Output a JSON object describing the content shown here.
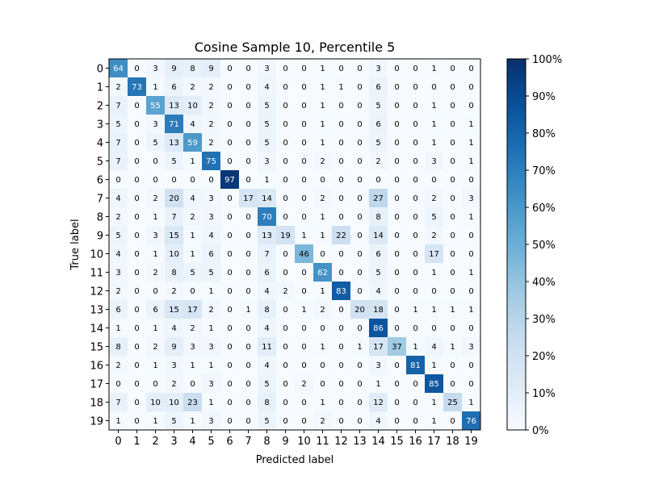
{
  "chart_data": {
    "type": "heatmap",
    "title": "Cosine Sample 10, Percentile 5",
    "xlabel": "Predicted label",
    "ylabel": "True label",
    "x_categories": [
      "0",
      "1",
      "2",
      "3",
      "4",
      "5",
      "6",
      "7",
      "8",
      "9",
      "10",
      "11",
      "12",
      "13",
      "14",
      "15",
      "16",
      "17",
      "18",
      "19"
    ],
    "y_categories": [
      "0",
      "1",
      "2",
      "3",
      "4",
      "5",
      "6",
      "7",
      "8",
      "9",
      "10",
      "11",
      "12",
      "13",
      "14",
      "15",
      "16",
      "17",
      "18",
      "19"
    ],
    "values": [
      [
        64,
        0,
        3,
        9,
        8,
        9,
        0,
        0,
        3,
        0,
        0,
        1,
        0,
        0,
        3,
        0,
        0,
        1,
        0,
        0
      ],
      [
        2,
        73,
        1,
        6,
        2,
        2,
        0,
        0,
        4,
        0,
        0,
        1,
        1,
        0,
        6,
        0,
        0,
        0,
        0,
        0
      ],
      [
        7,
        0,
        55,
        13,
        10,
        2,
        0,
        0,
        5,
        0,
        0,
        1,
        0,
        0,
        5,
        0,
        0,
        1,
        0,
        0
      ],
      [
        5,
        0,
        3,
        71,
        4,
        2,
        0,
        0,
        5,
        0,
        0,
        1,
        0,
        0,
        6,
        0,
        0,
        1,
        0,
        1
      ],
      [
        7,
        0,
        5,
        13,
        59,
        2,
        0,
        0,
        5,
        0,
        0,
        1,
        0,
        0,
        5,
        0,
        0,
        1,
        0,
        1
      ],
      [
        7,
        0,
        0,
        5,
        1,
        75,
        0,
        0,
        3,
        0,
        0,
        2,
        0,
        0,
        2,
        0,
        0,
        3,
        0,
        1
      ],
      [
        0,
        0,
        0,
        0,
        0,
        0,
        97,
        0,
        1,
        0,
        0,
        0,
        0,
        0,
        0,
        0,
        0,
        0,
        0,
        0
      ],
      [
        4,
        0,
        2,
        20,
        4,
        3,
        0,
        17,
        14,
        0,
        0,
        2,
        0,
        0,
        27,
        0,
        0,
        2,
        0,
        3
      ],
      [
        2,
        0,
        1,
        7,
        2,
        3,
        0,
        0,
        70,
        0,
        0,
        1,
        0,
        0,
        8,
        0,
        0,
        5,
        0,
        1
      ],
      [
        5,
        0,
        3,
        15,
        1,
        4,
        0,
        0,
        13,
        19,
        1,
        1,
        22,
        0,
        14,
        0,
        0,
        2,
        0,
        0
      ],
      [
        4,
        0,
        1,
        10,
        1,
        6,
        0,
        0,
        7,
        0,
        46,
        0,
        0,
        0,
        6,
        0,
        0,
        17,
        0,
        0
      ],
      [
        3,
        0,
        2,
        8,
        5,
        5,
        0,
        0,
        6,
        0,
        0,
        62,
        0,
        0,
        5,
        0,
        0,
        1,
        0,
        1
      ],
      [
        2,
        0,
        0,
        2,
        0,
        1,
        0,
        0,
        4,
        2,
        0,
        1,
        83,
        0,
        4,
        0,
        0,
        0,
        0,
        0
      ],
      [
        6,
        0,
        6,
        15,
        17,
        2,
        0,
        1,
        8,
        0,
        1,
        2,
        0,
        20,
        18,
        0,
        1,
        1,
        1,
        1
      ],
      [
        1,
        0,
        1,
        4,
        2,
        1,
        0,
        0,
        4,
        0,
        0,
        0,
        0,
        0,
        86,
        0,
        0,
        0,
        0,
        0
      ],
      [
        8,
        0,
        2,
        9,
        3,
        3,
        0,
        0,
        11,
        0,
        0,
        1,
        0,
        1,
        17,
        37,
        1,
        4,
        1,
        3
      ],
      [
        2,
        0,
        1,
        3,
        1,
        1,
        0,
        0,
        4,
        0,
        0,
        0,
        0,
        0,
        3,
        0,
        81,
        1,
        0,
        0
      ],
      [
        0,
        0,
        0,
        2,
        0,
        3,
        0,
        0,
        5,
        0,
        2,
        0,
        0,
        0,
        1,
        0,
        0,
        85,
        0,
        0
      ],
      [
        7,
        0,
        10,
        10,
        23,
        1,
        0,
        0,
        8,
        0,
        0,
        1,
        0,
        0,
        12,
        0,
        0,
        1,
        25,
        1
      ],
      [
        1,
        0,
        1,
        5,
        1,
        3,
        0,
        0,
        5,
        0,
        0,
        2,
        0,
        0,
        4,
        0,
        0,
        1,
        0,
        76
      ]
    ],
    "colormap": "Blues",
    "vmin": 0,
    "vmax": 100,
    "colorbar": {
      "ticks": [
        0,
        10,
        20,
        30,
        40,
        50,
        60,
        70,
        80,
        90,
        100
      ],
      "tick_labels": [
        "0%",
        "10%",
        "20%",
        "30%",
        "40%",
        "50%",
        "60%",
        "70%",
        "80%",
        "90%",
        "100%"
      ]
    }
  }
}
